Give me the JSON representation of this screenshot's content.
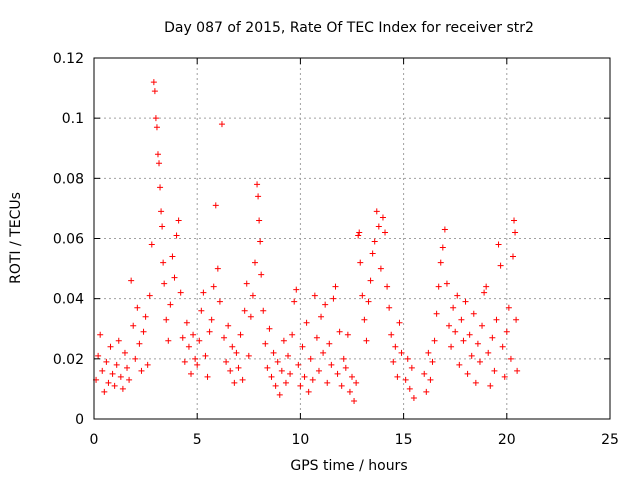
{
  "chart_data": {
    "type": "scatter",
    "title": "Day 087 of 2015, Rate Of TEC Index for receiver str2",
    "xlabel": "GPS time / hours",
    "ylabel": "ROTI / TECUs",
    "xlim": [
      0,
      25
    ],
    "ylim": [
      0,
      0.12
    ],
    "xticks": [
      0,
      5,
      10,
      15,
      20,
      25
    ],
    "xtick_labels": [
      "0",
      "5",
      "10",
      "15",
      "20",
      "25"
    ],
    "yticks": [
      0,
      0.02,
      0.04,
      0.06,
      0.08,
      0.1,
      0.12
    ],
    "ytick_labels": [
      "0",
      "0.02",
      "0.04",
      "0.06",
      "0.08",
      "0.1",
      "0.12"
    ],
    "grid": true,
    "marker": "plus",
    "color": "#ff0000",
    "series": [
      {
        "points": [
          [
            0.1,
            0.013
          ],
          [
            0.2,
            0.021
          ],
          [
            0.3,
            0.028
          ],
          [
            0.4,
            0.016
          ],
          [
            0.5,
            0.009
          ],
          [
            0.6,
            0.019
          ],
          [
            0.7,
            0.012
          ],
          [
            0.8,
            0.024
          ],
          [
            0.9,
            0.015
          ],
          [
            1.0,
            0.011
          ],
          [
            1.1,
            0.018
          ],
          [
            1.2,
            0.026
          ],
          [
            1.3,
            0.014
          ],
          [
            1.4,
            0.01
          ],
          [
            1.5,
            0.022
          ],
          [
            1.6,
            0.017
          ],
          [
            1.7,
            0.013
          ],
          [
            1.8,
            0.046
          ],
          [
            1.9,
            0.031
          ],
          [
            2.0,
            0.02
          ],
          [
            2.1,
            0.037
          ],
          [
            2.2,
            0.025
          ],
          [
            2.3,
            0.016
          ],
          [
            2.4,
            0.029
          ],
          [
            2.5,
            0.034
          ],
          [
            2.6,
            0.018
          ],
          [
            2.7,
            0.041
          ],
          [
            2.8,
            0.058
          ],
          [
            2.9,
            0.112
          ],
          [
            2.95,
            0.109
          ],
          [
            3.0,
            0.1
          ],
          [
            3.05,
            0.097
          ],
          [
            3.1,
            0.088
          ],
          [
            3.15,
            0.085
          ],
          [
            3.2,
            0.077
          ],
          [
            3.25,
            0.069
          ],
          [
            3.3,
            0.064
          ],
          [
            3.35,
            0.052
          ],
          [
            3.4,
            0.045
          ],
          [
            3.5,
            0.033
          ],
          [
            3.6,
            0.026
          ],
          [
            3.7,
            0.038
          ],
          [
            3.8,
            0.054
          ],
          [
            3.9,
            0.047
          ],
          [
            4.0,
            0.061
          ],
          [
            4.1,
            0.066
          ],
          [
            4.2,
            0.042
          ],
          [
            4.3,
            0.027
          ],
          [
            4.4,
            0.019
          ],
          [
            4.5,
            0.032
          ],
          [
            4.6,
            0.024
          ],
          [
            4.7,
            0.015
          ],
          [
            4.8,
            0.028
          ],
          [
            4.9,
            0.02
          ],
          [
            5.0,
            0.018
          ],
          [
            5.1,
            0.026
          ],
          [
            5.2,
            0.036
          ],
          [
            5.3,
            0.042
          ],
          [
            5.4,
            0.021
          ],
          [
            5.5,
            0.014
          ],
          [
            5.6,
            0.029
          ],
          [
            5.7,
            0.033
          ],
          [
            5.8,
            0.044
          ],
          [
            5.9,
            0.071
          ],
          [
            6.0,
            0.05
          ],
          [
            6.1,
            0.039
          ],
          [
            6.2,
            0.098
          ],
          [
            6.3,
            0.027
          ],
          [
            6.4,
            0.019
          ],
          [
            6.5,
            0.031
          ],
          [
            6.6,
            0.016
          ],
          [
            6.7,
            0.024
          ],
          [
            6.8,
            0.012
          ],
          [
            6.9,
            0.022
          ],
          [
            7.0,
            0.017
          ],
          [
            7.1,
            0.028
          ],
          [
            7.2,
            0.013
          ],
          [
            7.3,
            0.036
          ],
          [
            7.4,
            0.045
          ],
          [
            7.5,
            0.021
          ],
          [
            7.6,
            0.034
          ],
          [
            7.7,
            0.041
          ],
          [
            7.8,
            0.052
          ],
          [
            7.9,
            0.078
          ],
          [
            7.95,
            0.074
          ],
          [
            8.0,
            0.066
          ],
          [
            8.05,
            0.059
          ],
          [
            8.1,
            0.048
          ],
          [
            8.2,
            0.036
          ],
          [
            8.3,
            0.025
          ],
          [
            8.4,
            0.017
          ],
          [
            8.5,
            0.03
          ],
          [
            8.6,
            0.014
          ],
          [
            8.7,
            0.022
          ],
          [
            8.8,
            0.011
          ],
          [
            8.9,
            0.019
          ],
          [
            9.0,
            0.008
          ],
          [
            9.1,
            0.016
          ],
          [
            9.2,
            0.026
          ],
          [
            9.3,
            0.012
          ],
          [
            9.4,
            0.021
          ],
          [
            9.5,
            0.015
          ],
          [
            9.6,
            0.028
          ],
          [
            9.7,
            0.039
          ],
          [
            9.8,
            0.043
          ],
          [
            9.9,
            0.018
          ],
          [
            10.0,
            0.011
          ],
          [
            10.1,
            0.024
          ],
          [
            10.2,
            0.014
          ],
          [
            10.3,
            0.032
          ],
          [
            10.4,
            0.009
          ],
          [
            10.5,
            0.02
          ],
          [
            10.6,
            0.013
          ],
          [
            10.7,
            0.041
          ],
          [
            10.8,
            0.027
          ],
          [
            10.9,
            0.016
          ],
          [
            11.0,
            0.034
          ],
          [
            11.1,
            0.022
          ],
          [
            11.2,
            0.038
          ],
          [
            11.3,
            0.012
          ],
          [
            11.4,
            0.025
          ],
          [
            11.5,
            0.018
          ],
          [
            11.6,
            0.04
          ],
          [
            11.7,
            0.044
          ],
          [
            11.8,
            0.015
          ],
          [
            11.9,
            0.029
          ],
          [
            12.0,
            0.011
          ],
          [
            12.1,
            0.02
          ],
          [
            12.2,
            0.017
          ],
          [
            12.3,
            0.028
          ],
          [
            12.4,
            0.009
          ],
          [
            12.5,
            0.014
          ],
          [
            12.6,
            0.006
          ],
          [
            12.7,
            0.012
          ],
          [
            12.8,
            0.061
          ],
          [
            12.85,
            0.062
          ],
          [
            12.9,
            0.052
          ],
          [
            13.0,
            0.041
          ],
          [
            13.1,
            0.033
          ],
          [
            13.2,
            0.026
          ],
          [
            13.3,
            0.039
          ],
          [
            13.4,
            0.046
          ],
          [
            13.5,
            0.055
          ],
          [
            13.6,
            0.059
          ],
          [
            13.7,
            0.069
          ],
          [
            13.8,
            0.064
          ],
          [
            13.9,
            0.05
          ],
          [
            14.0,
            0.067
          ],
          [
            14.1,
            0.062
          ],
          [
            14.2,
            0.044
          ],
          [
            14.3,
            0.037
          ],
          [
            14.4,
            0.028
          ],
          [
            14.5,
            0.019
          ],
          [
            14.6,
            0.024
          ],
          [
            14.7,
            0.014
          ],
          [
            14.8,
            0.032
          ],
          [
            14.9,
            0.022
          ],
          [
            15.1,
            0.013
          ],
          [
            15.2,
            0.02
          ],
          [
            15.3,
            0.01
          ],
          [
            15.4,
            0.017
          ],
          [
            15.5,
            0.007
          ],
          [
            16.0,
            0.015
          ],
          [
            16.1,
            0.009
          ],
          [
            16.2,
            0.022
          ],
          [
            16.3,
            0.013
          ],
          [
            16.4,
            0.019
          ],
          [
            16.5,
            0.026
          ],
          [
            16.6,
            0.035
          ],
          [
            16.7,
            0.044
          ],
          [
            16.8,
            0.052
          ],
          [
            16.9,
            0.057
          ],
          [
            17.0,
            0.063
          ],
          [
            17.1,
            0.045
          ],
          [
            17.2,
            0.031
          ],
          [
            17.3,
            0.024
          ],
          [
            17.4,
            0.037
          ],
          [
            17.5,
            0.029
          ],
          [
            17.6,
            0.041
          ],
          [
            17.7,
            0.018
          ],
          [
            17.8,
            0.033
          ],
          [
            17.9,
            0.026
          ],
          [
            18.0,
            0.039
          ],
          [
            18.1,
            0.015
          ],
          [
            18.2,
            0.028
          ],
          [
            18.3,
            0.021
          ],
          [
            18.4,
            0.035
          ],
          [
            18.5,
            0.012
          ],
          [
            18.6,
            0.025
          ],
          [
            18.7,
            0.019
          ],
          [
            18.8,
            0.031
          ],
          [
            18.9,
            0.042
          ],
          [
            19.0,
            0.044
          ],
          [
            19.1,
            0.022
          ],
          [
            19.2,
            0.011
          ],
          [
            19.3,
            0.027
          ],
          [
            19.4,
            0.016
          ],
          [
            19.5,
            0.033
          ],
          [
            19.6,
            0.058
          ],
          [
            19.7,
            0.051
          ],
          [
            19.8,
            0.024
          ],
          [
            19.9,
            0.014
          ],
          [
            20.0,
            0.029
          ],
          [
            20.1,
            0.037
          ],
          [
            20.2,
            0.02
          ],
          [
            20.3,
            0.054
          ],
          [
            20.35,
            0.066
          ],
          [
            20.4,
            0.062
          ],
          [
            20.45,
            0.033
          ],
          [
            20.5,
            0.016
          ]
        ]
      }
    ]
  }
}
